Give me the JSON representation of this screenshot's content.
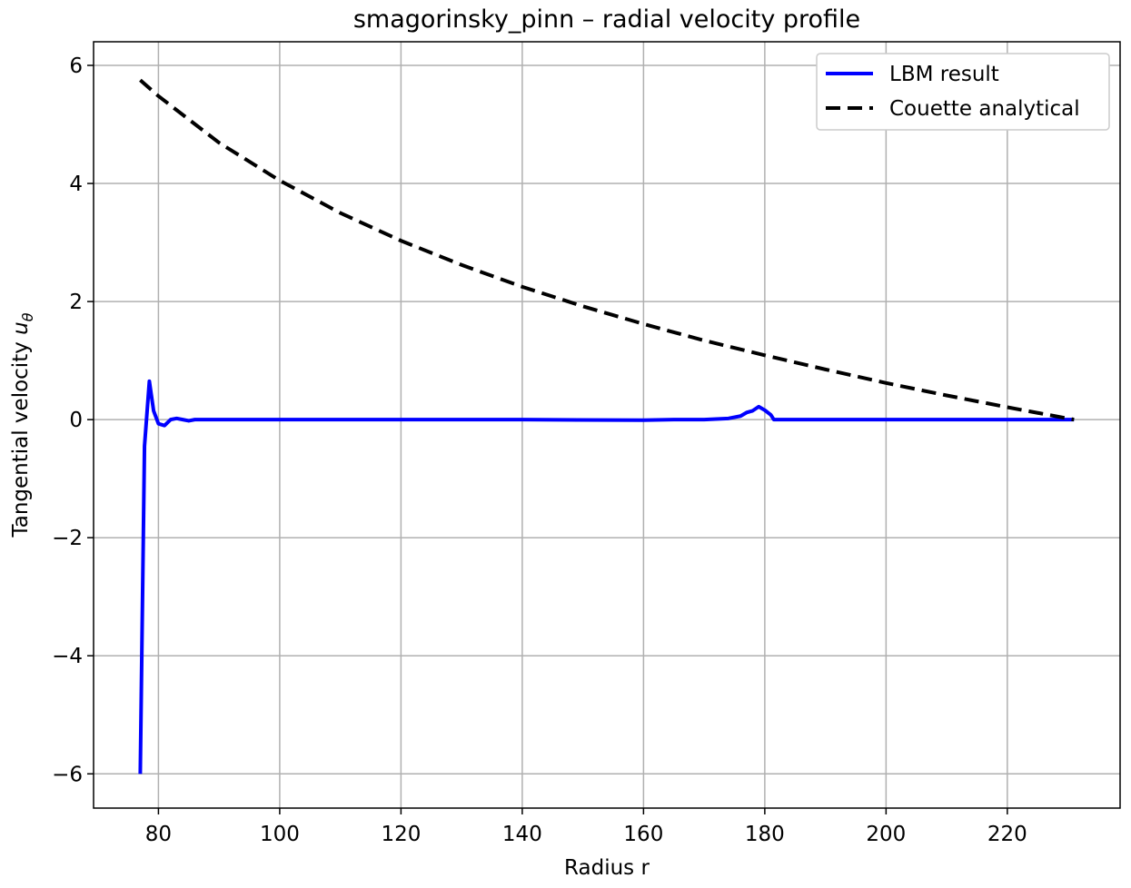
{
  "chart_data": {
    "type": "line",
    "title": "smagorinsky_pinn – radial velocity profile",
    "xlabel": "Radius r",
    "ylabel": "Tangential velocity",
    "ylabel_symbol": "u",
    "ylabel_subscript": "θ",
    "xlim": [
      69.3,
      238.6
    ],
    "ylim": [
      -6.58,
      6.4
    ],
    "xticks": [
      80,
      100,
      120,
      140,
      160,
      180,
      200,
      220
    ],
    "yticks": [
      {
        "value": -6,
        "label": "−6"
      },
      {
        "value": -4,
        "label": "−4"
      },
      {
        "value": -2,
        "label": "−2"
      },
      0,
      2,
      4,
      6
    ],
    "grid": true,
    "legend": "upper right",
    "series": [
      {
        "name": "LBM result",
        "color": "#0000ff",
        "dash": "solid",
        "x": [
          77,
          77.7,
          78.5,
          79.2,
          80,
          81,
          82,
          83,
          84,
          85,
          86,
          90,
          140,
          160,
          165,
          170,
          174,
          176,
          177,
          178,
          179,
          180,
          181,
          181.5,
          231
        ],
        "values": [
          -6,
          -0.45,
          0.65,
          0.15,
          -0.07,
          -0.1,
          0,
          0.02,
          0,
          -0.02,
          0,
          0,
          0,
          -0.01,
          0,
          0,
          0.02,
          0.06,
          0.12,
          0.15,
          0.22,
          0.16,
          0.08,
          0,
          0
        ]
      },
      {
        "name": "Couette analytical",
        "color": "#000000",
        "dash": "dashed",
        "x": [
          77,
          80,
          90,
          100,
          110,
          120,
          130,
          140,
          150,
          160,
          170,
          180,
          190,
          200,
          210,
          220,
          231
        ],
        "values": [
          5.75,
          5.48,
          4.69,
          4.05,
          3.5,
          3.03,
          2.62,
          2.25,
          1.92,
          1.62,
          1.34,
          1.09,
          0.85,
          0.62,
          0.41,
          0.21,
          0
        ]
      }
    ]
  }
}
